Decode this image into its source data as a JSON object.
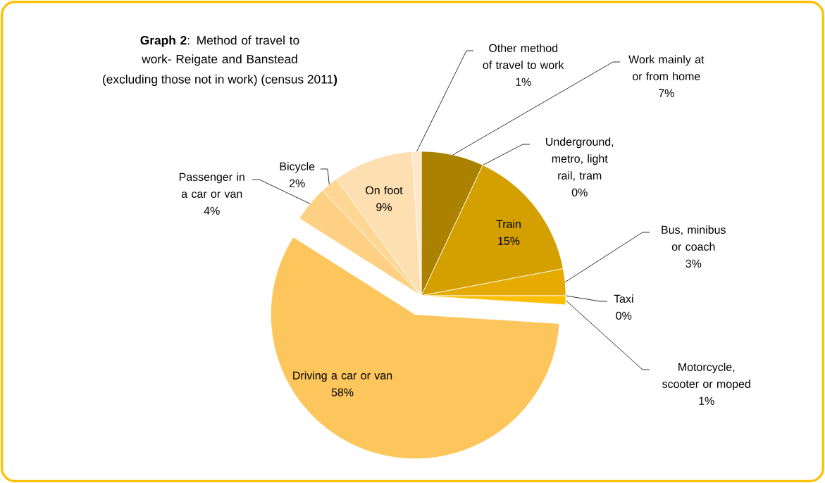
{
  "chart_data": {
    "type": "pie",
    "title": "**Graph 2**: Method of travel to work- Reigate and Banstead",
    "subtitle": "(excluding those not in work) (census 2011**)**",
    "categories": [
      "Work mainly at or from home",
      "Underground, metro, light rail, tram",
      "Train",
      "Bus, minibus or coach",
      "Taxi",
      "Motorcycle, scooter or moped",
      "Driving a car or van",
      "Passenger in a car or van",
      "Bicycle",
      "On foot",
      "Other method of travel to work"
    ],
    "values": [
      7,
      0,
      15,
      3,
      0,
      1,
      58,
      4,
      2,
      9,
      1
    ],
    "value_labels": [
      "7%",
      "0%",
      "15%",
      "3%",
      "0%",
      "1%",
      "58%",
      "4%",
      "2%",
      "9%",
      "1%"
    ],
    "colors": [
      "#ab8200",
      "#c29400",
      "#d4a000",
      "#e6ab00",
      "#f2b600",
      "#fcbf00",
      "#fdc65c",
      "#fdd083",
      "#fed794",
      "#fedfb2",
      "#fee6c6"
    ]
  }
}
